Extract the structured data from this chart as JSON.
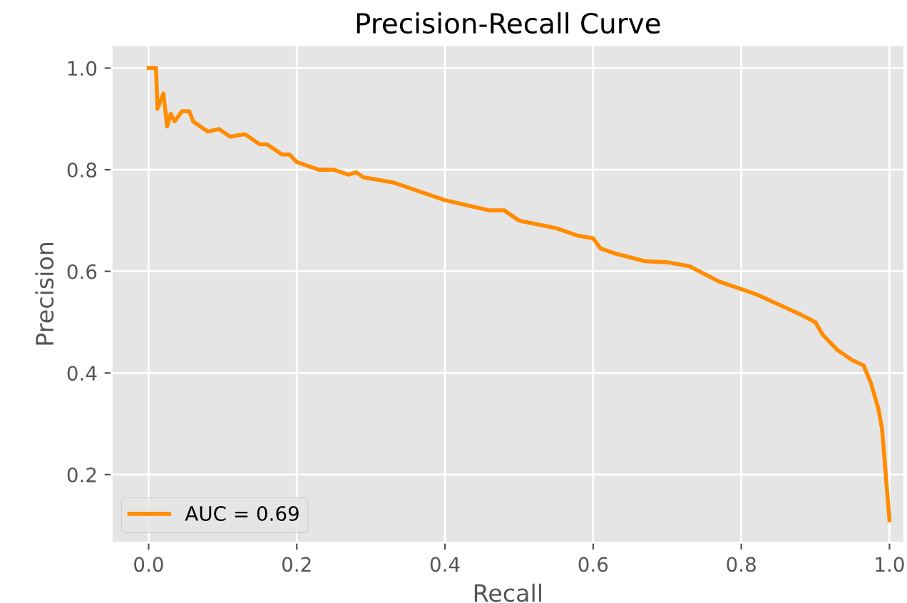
{
  "chart_data": {
    "type": "line",
    "title": "Precision-Recall Curve",
    "xlabel": "Recall",
    "ylabel": "Precision",
    "xlim": [
      -0.05,
      1.02
    ],
    "ylim": [
      0.066,
      1.045
    ],
    "xticks": [
      {
        "value": 0.0,
        "label": "0.0"
      },
      {
        "value": 0.2,
        "label": "0.2"
      },
      {
        "value": 0.4,
        "label": "0.4"
      },
      {
        "value": 0.6,
        "label": "0.6"
      },
      {
        "value": 0.8,
        "label": "0.8"
      },
      {
        "value": 1.0,
        "label": "1.0"
      }
    ],
    "yticks": [
      {
        "value": 0.2,
        "label": "0.2"
      },
      {
        "value": 0.4,
        "label": "0.4"
      },
      {
        "value": 0.6,
        "label": "0.6"
      },
      {
        "value": 0.8,
        "label": "0.8"
      },
      {
        "value": 1.0,
        "label": "1.0"
      }
    ],
    "grid": true,
    "legend": "lower left",
    "series": [
      {
        "name": "AUC = 0.69",
        "color": "#ff8c00",
        "x": [
          0,
          0.01,
          0.012,
          0.02,
          0.025,
          0.03,
          0.035,
          0.045,
          0.055,
          0.06,
          0.07,
          0.08,
          0.095,
          0.11,
          0.13,
          0.15,
          0.16,
          0.18,
          0.19,
          0.2,
          0.23,
          0.25,
          0.27,
          0.28,
          0.29,
          0.33,
          0.36,
          0.4,
          0.43,
          0.46,
          0.48,
          0.5,
          0.55,
          0.58,
          0.6,
          0.61,
          0.63,
          0.67,
          0.7,
          0.73,
          0.75,
          0.77,
          0.8,
          0.82,
          0.85,
          0.88,
          0.9,
          0.91,
          0.93,
          0.95,
          0.965,
          0.975,
          0.985,
          0.99,
          1.0
        ],
        "values": [
          1.0,
          1.0,
          0.92,
          0.95,
          0.885,
          0.91,
          0.895,
          0.915,
          0.915,
          0.895,
          0.885,
          0.875,
          0.88,
          0.865,
          0.87,
          0.85,
          0.85,
          0.83,
          0.83,
          0.815,
          0.8,
          0.8,
          0.79,
          0.795,
          0.785,
          0.775,
          0.76,
          0.74,
          0.73,
          0.72,
          0.72,
          0.7,
          0.685,
          0.67,
          0.665,
          0.645,
          0.635,
          0.62,
          0.618,
          0.61,
          0.595,
          0.58,
          0.565,
          0.555,
          0.535,
          0.515,
          0.5,
          0.475,
          0.445,
          0.425,
          0.415,
          0.38,
          0.33,
          0.29,
          0.11
        ]
      }
    ]
  }
}
